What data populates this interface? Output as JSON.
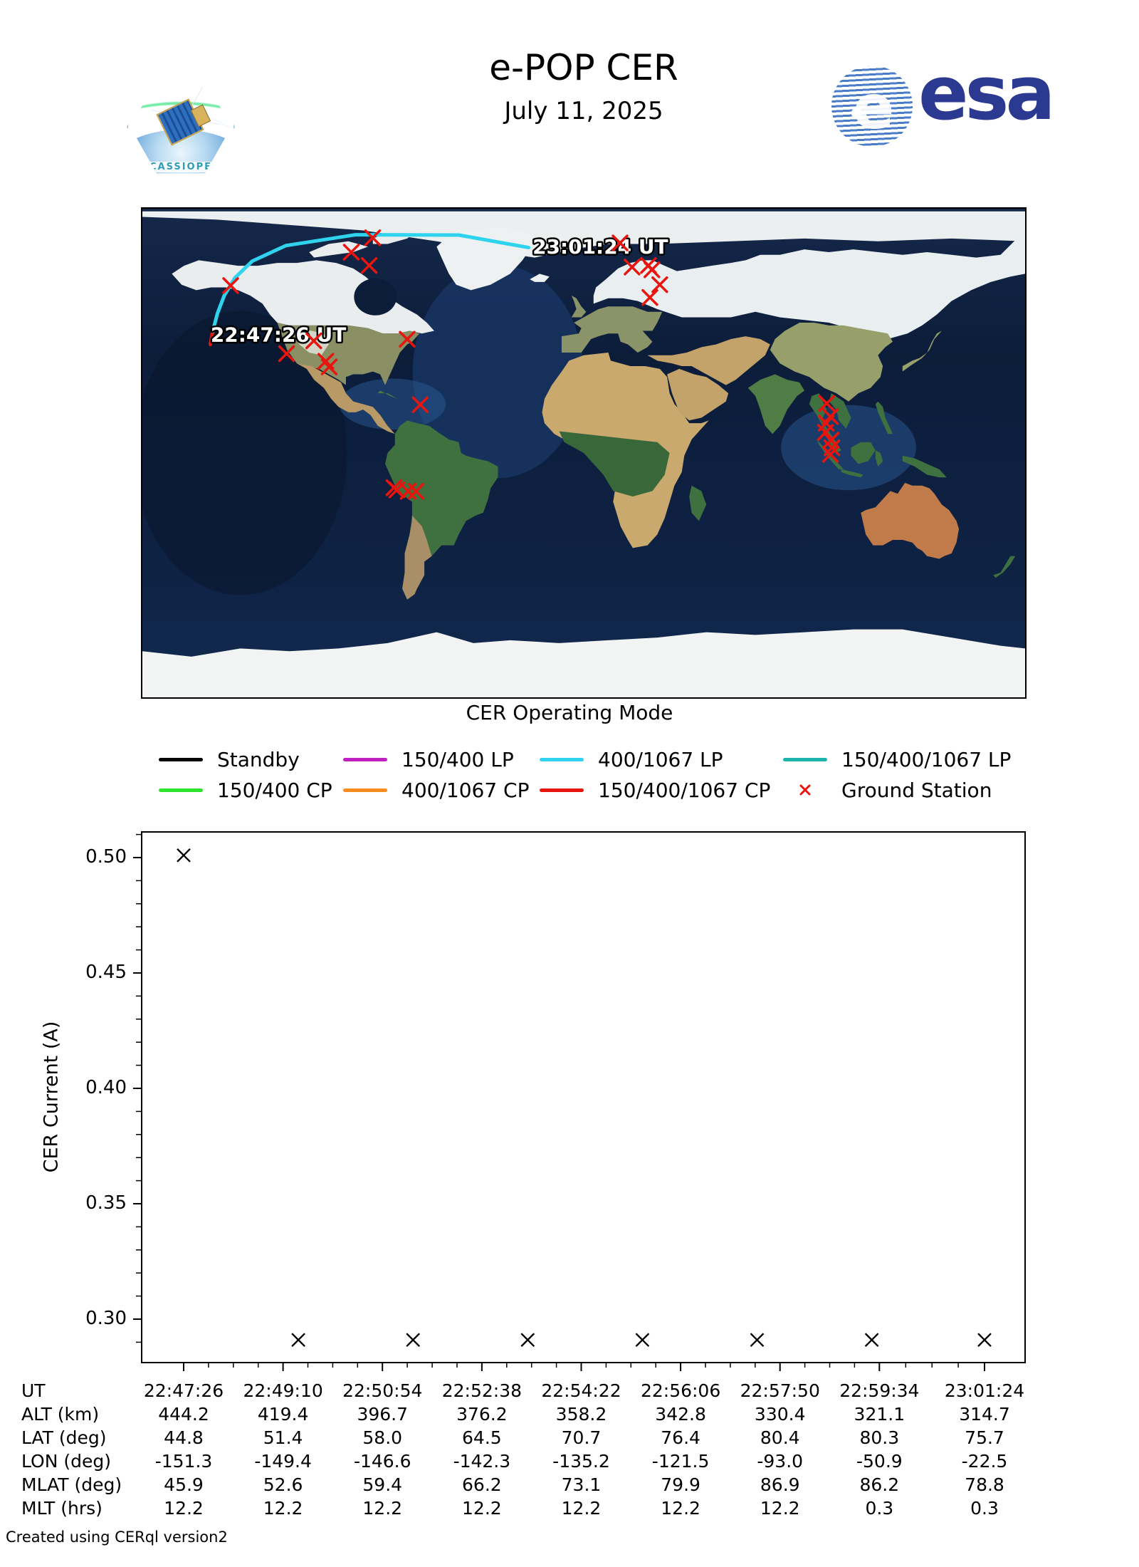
{
  "header": {
    "title": "e-POP CER",
    "date": "July 11, 2025",
    "cassiope_label": "CASSIOPE",
    "esa_wordmark": "esa",
    "esa_e": "e"
  },
  "map": {
    "start_label": "22:47:26 UT",
    "end_label": "23:01:24 UT",
    "track_color": "#2fd3ee",
    "track_start_color": "#e8150f",
    "station_color": "#e8150f",
    "track_points_lonlat": [
      [
        -151.3,
        44.8
      ],
      [
        -149.4,
        51.4
      ],
      [
        -146.6,
        58.0
      ],
      [
        -142.3,
        64.5
      ],
      [
        -135.2,
        70.7
      ],
      [
        -121.5,
        76.4
      ],
      [
        -93.0,
        80.4
      ],
      [
        -50.9,
        80.3
      ],
      [
        -22.5,
        75.7
      ]
    ],
    "track_start_stub_lonlat": [
      [
        -152.3,
        40.0
      ],
      [
        -151.3,
        44.8
      ]
    ],
    "stations_lonlat": [
      [
        -144.0,
        61.7
      ],
      [
        -94.8,
        74.0
      ],
      [
        -86.1,
        79.3
      ],
      [
        -87.5,
        69.1
      ],
      [
        -121.2,
        36.6
      ],
      [
        -110.1,
        41.3
      ],
      [
        -105.2,
        33.8
      ],
      [
        -103.8,
        31.7
      ],
      [
        -72.0,
        41.9
      ],
      [
        -66.7,
        17.8
      ],
      [
        -77.4,
        -12.8
      ],
      [
        -76.2,
        -13.6
      ],
      [
        -71.6,
        -14.1
      ],
      [
        -68.4,
        -14.1
      ],
      [
        14.8,
        77.4
      ],
      [
        19.7,
        68.5
      ],
      [
        26.4,
        69.1
      ],
      [
        27.8,
        67.5
      ],
      [
        31.0,
        62.0
      ],
      [
        27.0,
        57.3
      ],
      [
        99.1,
        18.3
      ],
      [
        100.6,
        13.4
      ],
      [
        98.9,
        11.0
      ],
      [
        98.6,
        7.6
      ],
      [
        100.9,
        4.7
      ],
      [
        101.2,
        1.9
      ],
      [
        100.6,
        -0.5
      ]
    ]
  },
  "legend": {
    "title": "CER Operating Mode",
    "items": [
      {
        "label": "Standby",
        "color": "#000000",
        "kind": "line"
      },
      {
        "label": "150/400 LP",
        "color": "#c120c1",
        "kind": "line"
      },
      {
        "label": "400/1067 LP",
        "color": "#2fd3ee",
        "kind": "line"
      },
      {
        "label": "150/400/1067 LP",
        "color": "#1cb4ac",
        "kind": "line"
      },
      {
        "label": "150/400 CP",
        "color": "#2ee52e",
        "kind": "line"
      },
      {
        "label": "400/1067 CP",
        "color": "#fb8c20",
        "kind": "line"
      },
      {
        "label": "150/400/1067 CP",
        "color": "#e8150f",
        "kind": "line"
      },
      {
        "label": "Ground Station",
        "color": "#e8150f",
        "kind": "x"
      }
    ]
  },
  "chart_data": {
    "type": "scatter",
    "title": "",
    "xlabel": "",
    "ylabel": "CER Current (A)",
    "ylim": [
      0.281,
      0.511
    ],
    "yticks": [
      "0.30",
      "0.35",
      "0.40",
      "0.45",
      "0.50"
    ],
    "marker": "x",
    "marker_color": "#000000",
    "grid": false,
    "x_ticks": [
      {
        "t": 0,
        "label": "22:47:26"
      },
      {
        "t": 104,
        "label": "22:49:10"
      },
      {
        "t": 208,
        "label": "22:50:54"
      },
      {
        "t": 312,
        "label": "22:52:38"
      },
      {
        "t": 416,
        "label": "22:54:22"
      },
      {
        "t": 520,
        "label": "22:56:06"
      },
      {
        "t": 624,
        "label": "22:57:50"
      },
      {
        "t": 728,
        "label": "22:59:34"
      },
      {
        "t": 838,
        "label": "23:01:24"
      }
    ],
    "points": [
      {
        "t": 0,
        "value": 0.501
      },
      {
        "t": 120,
        "value": 0.291
      },
      {
        "t": 240,
        "value": 0.291
      },
      {
        "t": 360,
        "value": 0.291
      },
      {
        "t": 480,
        "value": 0.291
      },
      {
        "t": 600,
        "value": 0.291
      },
      {
        "t": 720,
        "value": 0.291
      },
      {
        "t": 838,
        "value": 0.291
      }
    ]
  },
  "table": {
    "rows": [
      {
        "label": "UT",
        "values": [
          "22:47:26",
          "22:49:10",
          "22:50:54",
          "22:52:38",
          "22:54:22",
          "22:56:06",
          "22:57:50",
          "22:59:34",
          "23:01:24"
        ]
      },
      {
        "label": "ALT (km)",
        "values": [
          "444.2",
          "419.4",
          "396.7",
          "376.2",
          "358.2",
          "342.8",
          "330.4",
          "321.1",
          "314.7"
        ]
      },
      {
        "label": "LAT (deg)",
        "values": [
          "44.8",
          "51.4",
          "58.0",
          "64.5",
          "70.7",
          "76.4",
          "80.4",
          "80.3",
          "75.7"
        ]
      },
      {
        "label": "LON (deg)",
        "values": [
          "-151.3",
          "-149.4",
          "-146.6",
          "-142.3",
          "-135.2",
          "-121.5",
          "-93.0",
          "-50.9",
          "-22.5"
        ]
      },
      {
        "label": "MLAT (deg)",
        "values": [
          "45.9",
          "52.6",
          "59.4",
          "66.2",
          "73.1",
          "79.9",
          "86.9",
          "86.2",
          "78.8"
        ]
      },
      {
        "label": "MLT (hrs)",
        "values": [
          "12.2",
          "12.2",
          "12.2",
          "12.2",
          "12.2",
          "12.2",
          "12.2",
          "0.3",
          "0.3"
        ]
      }
    ]
  },
  "footer": {
    "text": "Created using CERql version2"
  }
}
